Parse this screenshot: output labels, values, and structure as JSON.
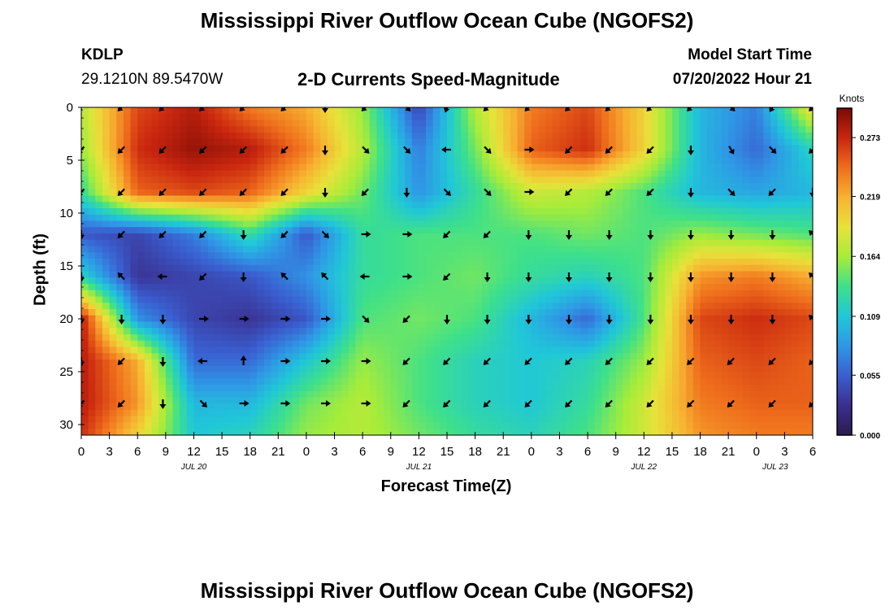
{
  "header": {
    "title": "Mississippi River Outflow Ocean Cube (NGOFS2)",
    "station": "KDLP",
    "coords": "29.1210N  89.5470W",
    "plot_title": "2-D Currents Speed-Magnitude",
    "model_start_label": "Model Start Time",
    "model_start_value": "07/20/2022 Hour 21"
  },
  "footer": {
    "title": "Mississippi River Outflow Ocean Cube (NGOFS2)"
  },
  "colors": {
    "colormap": [
      "#2c1b4f",
      "#3b2f8f",
      "#3a5fd0",
      "#2f97e6",
      "#20c7d8",
      "#3ee08a",
      "#a6ec3a",
      "#e8e23a",
      "#f7b231",
      "#ef6e1c",
      "#c9260f",
      "#7a0a05"
    ]
  },
  "chart_data": {
    "type": "heatmap",
    "title": "2-D Currents Speed-Magnitude",
    "xlabel": "Forecast Time(Z)",
    "ylabel": "Depth (ft)",
    "colorbar_label": "Knots",
    "colorbar_ticks": [
      "0.273",
      "0.219",
      "0.164",
      "0.109",
      "0.055",
      "0.000"
    ],
    "colorbar_range": [
      0.0,
      0.3
    ],
    "x_tick_labels": [
      "0",
      "3",
      "6",
      "9",
      "12",
      "15",
      "18",
      "21",
      "0",
      "3",
      "6",
      "9",
      "12",
      "15",
      "18",
      "21",
      "0",
      "3",
      "6",
      "9",
      "12",
      "15",
      "18",
      "21",
      "0",
      "3",
      "6"
    ],
    "date_labels": [
      "JUL 20",
      "JUL 21",
      "JUL 22",
      "JUL 23"
    ],
    "y_tick_labels": [
      "0",
      "5",
      "10",
      "15",
      "20",
      "25",
      "30"
    ],
    "x_range_hours": [
      0,
      78
    ],
    "y_range_ft": [
      0,
      31
    ],
    "x_hours": [
      0,
      6,
      12,
      18,
      24,
      30,
      36,
      42,
      48,
      54,
      60,
      66,
      72,
      78
    ],
    "depths_ft": [
      0,
      4,
      8,
      12,
      16,
      20,
      24,
      28,
      31
    ],
    "speed_knots": [
      [
        0.17,
        0.26,
        0.28,
        0.24,
        0.22,
        0.16,
        0.04,
        0.17,
        0.24,
        0.26,
        0.2,
        0.1,
        0.07,
        0.2
      ],
      [
        0.16,
        0.27,
        0.29,
        0.28,
        0.24,
        0.17,
        0.07,
        0.15,
        0.25,
        0.27,
        0.2,
        0.1,
        0.06,
        0.12
      ],
      [
        0.13,
        0.25,
        0.26,
        0.25,
        0.2,
        0.15,
        0.08,
        0.13,
        0.18,
        0.17,
        0.14,
        0.1,
        0.09,
        0.1
      ],
      [
        0.05,
        0.04,
        0.07,
        0.13,
        0.05,
        0.13,
        0.14,
        0.14,
        0.14,
        0.15,
        0.14,
        0.16,
        0.15,
        0.14
      ],
      [
        0.12,
        0.03,
        0.04,
        0.05,
        0.08,
        0.13,
        0.14,
        0.15,
        0.13,
        0.12,
        0.14,
        0.23,
        0.24,
        0.22
      ],
      [
        0.28,
        0.08,
        0.04,
        0.03,
        0.05,
        0.14,
        0.15,
        0.14,
        0.1,
        0.06,
        0.14,
        0.26,
        0.27,
        0.26
      ],
      [
        0.28,
        0.22,
        0.06,
        0.06,
        0.11,
        0.16,
        0.14,
        0.12,
        0.11,
        0.12,
        0.16,
        0.25,
        0.26,
        0.25
      ],
      [
        0.28,
        0.23,
        0.1,
        0.1,
        0.15,
        0.17,
        0.14,
        0.12,
        0.11,
        0.13,
        0.18,
        0.24,
        0.25,
        0.25
      ],
      [
        0.27,
        0.2,
        0.11,
        0.12,
        0.16,
        0.17,
        0.15,
        0.13,
        0.12,
        0.14,
        0.18,
        0.23,
        0.24,
        0.24
      ]
    ],
    "arrow_x_hours": [
      0,
      4.3,
      8.7,
      13,
      17.3,
      21.7,
      26,
      30.3,
      34.7,
      39,
      43.3,
      47.7,
      52,
      56.3,
      60.7,
      65,
      69.3,
      73.7,
      78
    ],
    "arrow_depths_ft": [
      0,
      4,
      8,
      12,
      16,
      20,
      24,
      28
    ],
    "arrow_directions_deg": [
      [
        135,
        135,
        135,
        135,
        135,
        135,
        90,
        135,
        45,
        110,
        135,
        135,
        135,
        135,
        135,
        135,
        45,
        120,
        135
      ],
      [
        135,
        135,
        135,
        135,
        135,
        135,
        90,
        45,
        45,
        180,
        45,
        0,
        135,
        135,
        135,
        90,
        60,
        45,
        135
      ],
      [
        135,
        135,
        135,
        135,
        135,
        135,
        90,
        135,
        90,
        45,
        45,
        0,
        135,
        135,
        135,
        90,
        45,
        135,
        90
      ],
      [
        90,
        135,
        135,
        135,
        90,
        135,
        45,
        0,
        0,
        135,
        135,
        90,
        90,
        90,
        90,
        90,
        90,
        90,
        225
      ],
      [
        90,
        225,
        180,
        135,
        90,
        225,
        225,
        180,
        0,
        135,
        90,
        90,
        90,
        90,
        90,
        90,
        90,
        90,
        225
      ],
      [
        90,
        90,
        90,
        0,
        0,
        0,
        0,
        45,
        135,
        90,
        90,
        90,
        90,
        90,
        90,
        90,
        90,
        90,
        225
      ],
      [
        90,
        135,
        90,
        180,
        270,
        0,
        0,
        0,
        135,
        135,
        135,
        135,
        135,
        135,
        135,
        135,
        135,
        135,
        135
      ],
      [
        135,
        135,
        90,
        45,
        0,
        0,
        0,
        0,
        135,
        135,
        135,
        135,
        135,
        135,
        135,
        135,
        135,
        135,
        135
      ]
    ]
  }
}
